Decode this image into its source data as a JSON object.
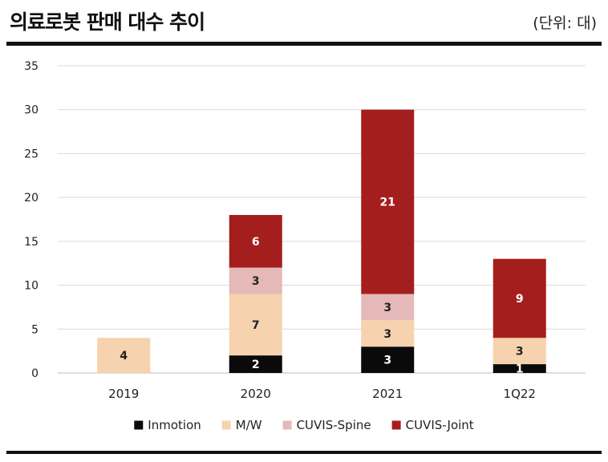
{
  "header": {
    "title": "의료로봇 판매 대수 추이",
    "unit": "(단위: 대)"
  },
  "colors": {
    "Inmotion": "#0a0a0a",
    "M/W": "#f6d2ae",
    "CUVIS-Spine": "#e4b9b7",
    "CUVIS-Joint": "#a51e1e",
    "grid": "#d9d9d9"
  },
  "chart_data": {
    "type": "bar",
    "stacked": true,
    "title": "의료로봇 판매 대수 추이",
    "unit": "(단위: 대)",
    "xlabel": "",
    "ylabel": "",
    "ylim": [
      0,
      35
    ],
    "yticks": [
      0,
      5,
      10,
      15,
      20,
      25,
      30,
      35
    ],
    "grid": true,
    "legend_position": "bottom",
    "categories": [
      "2019",
      "2020",
      "2021",
      "1Q22"
    ],
    "series": [
      {
        "name": "Inmotion",
        "values": [
          0,
          2,
          3,
          1
        ]
      },
      {
        "name": "M/W",
        "values": [
          4,
          7,
          3,
          3
        ]
      },
      {
        "name": "CUVIS-Spine",
        "values": [
          0,
          3,
          3,
          0
        ]
      },
      {
        "name": "CUVIS-Joint",
        "values": [
          0,
          6,
          21,
          9
        ]
      }
    ]
  }
}
